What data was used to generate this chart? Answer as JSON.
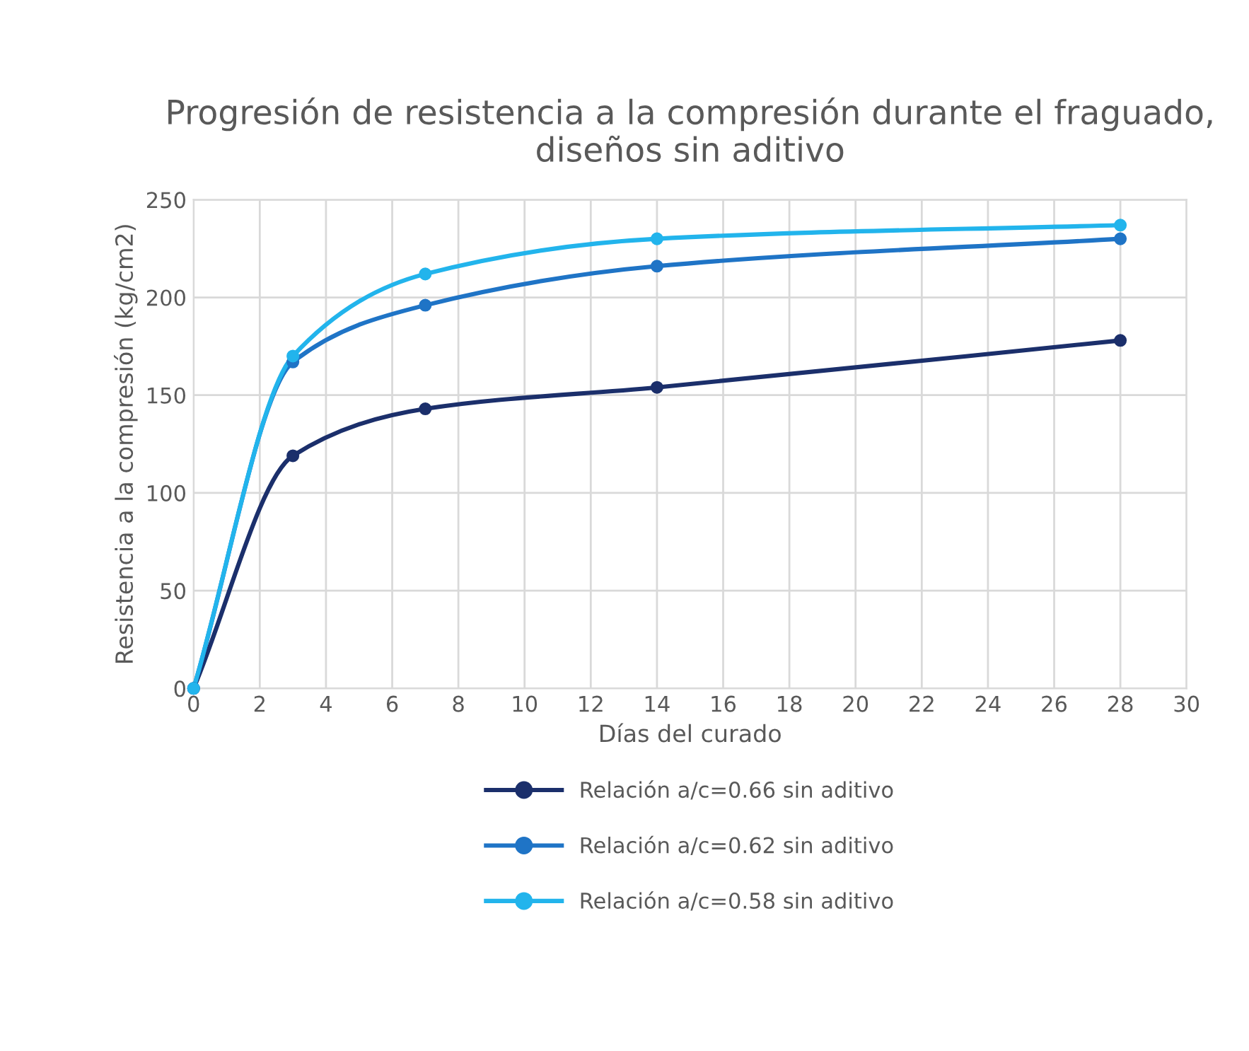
{
  "chart_data": {
    "type": "line",
    "title": "Progresión de resistencia a la compresión durante el fraguado, diseños sin aditivo",
    "xlabel": "Días del curado",
    "ylabel": "Resistencia a la compresión (kg/cm2)",
    "x": [
      0,
      3,
      7,
      14,
      28
    ],
    "series": [
      {
        "name": "Relación a/c=0.66 sin aditivo",
        "color": "#1b2f6b",
        "values": [
          0,
          119,
          143,
          154,
          178
        ]
      },
      {
        "name": "Relación a/c=0.62 sin aditivo",
        "color": "#1f74c6",
        "values": [
          0,
          167,
          196,
          216,
          230
        ]
      },
      {
        "name": "Relación a/c=0.58 sin aditivo",
        "color": "#22b4ec",
        "values": [
          0,
          170,
          212,
          230,
          237
        ]
      }
    ],
    "xlim": [
      0,
      30
    ],
    "xticks": [
      0,
      2,
      4,
      6,
      8,
      10,
      12,
      14,
      16,
      18,
      20,
      22,
      24,
      26,
      28,
      30
    ],
    "ylim": [
      0,
      250
    ],
    "yticks": [
      0,
      50,
      100,
      150,
      200,
      250
    ],
    "grid": true,
    "legend": "bottom",
    "marker": "circle",
    "line_style": "solid"
  }
}
